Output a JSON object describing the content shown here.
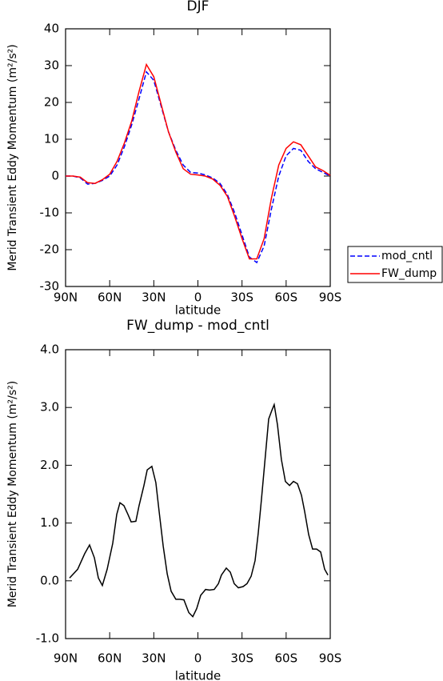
{
  "chart_data": [
    {
      "type": "line",
      "title": "DJF",
      "xlabel": "latitude",
      "ylabel": "Merid Transient Eddy Momentum (m²/s²)",
      "x": [
        90,
        85,
        80,
        75,
        70,
        65,
        60,
        55,
        50,
        45,
        40,
        35,
        30,
        25,
        20,
        15,
        10,
        5,
        0,
        -5,
        -10,
        -15,
        -20,
        -25,
        -30,
        -35,
        -40,
        -45,
        -50,
        -55,
        -60,
        -65,
        -70,
        -75,
        -80,
        -85,
        -90
      ],
      "series": [
        {
          "name": "mod_cntl",
          "color": "#0000ff",
          "dash": "dashed",
          "values": [
            0,
            0,
            -0.5,
            -2.2,
            -2,
            -1.2,
            0,
            3,
            8,
            14,
            21,
            28.3,
            26,
            19,
            12,
            7,
            3,
            1,
            0.8,
            0.3,
            -0.5,
            -2,
            -5,
            -10,
            -16,
            -22,
            -23.5,
            -19,
            -9,
            0,
            5.5,
            7.5,
            7,
            4,
            2,
            1,
            0
          ]
        },
        {
          "name": "FW_dump",
          "color": "#ff0000",
          "dash": "solid",
          "values": [
            0,
            0,
            -0.3,
            -1.8,
            -2,
            -1,
            0.5,
            4,
            9,
            15,
            23,
            30.3,
            27,
            19.5,
            12,
            6.5,
            2,
            0.5,
            0.3,
            0,
            -0.8,
            -2.5,
            -5.5,
            -11,
            -17,
            -22.5,
            -22.5,
            -17,
            -6,
            3,
            7.5,
            9.3,
            8.5,
            5.5,
            2.5,
            1.5,
            0.2
          ]
        }
      ],
      "xlim": [
        90,
        -90
      ],
      "xticks": [
        {
          "value": 90,
          "label": "90N"
        },
        {
          "value": 60,
          "label": "60N"
        },
        {
          "value": 30,
          "label": "30N"
        },
        0,
        {
          "value": -30,
          "label": "30S"
        },
        {
          "value": -60,
          "label": "60S"
        },
        {
          "value": -90,
          "label": "90S"
        }
      ],
      "ylim": [
        -30,
        40
      ],
      "yticks": [
        -30,
        -20,
        -10,
        0,
        10,
        20,
        30,
        40
      ],
      "legend": "right"
    },
    {
      "type": "line",
      "title": "FW_dump - mod_cntl",
      "xlabel": "latitude",
      "ylabel": "Merid Transient Eddy Momentum (m²/s²)",
      "x": [
        87.3,
        81.8,
        77.0,
        73.7,
        70.4,
        67.7,
        65.0,
        61.7,
        57.9,
        55.2,
        53.0,
        50.3,
        47.6,
        45.4,
        42.2,
        40.0,
        36.7,
        34.5,
        31.3,
        28.6,
        26.4,
        23.6,
        20.9,
        18.2,
        15.0,
        12.2,
        9.5,
        6.2,
        3.5,
        0.8,
        -1.9,
        -5.2,
        -7.9,
        -11.1,
        -13.9,
        -16.0,
        -19.3,
        -22.0,
        -24.7,
        -27.5,
        -30.7,
        -33.4,
        -36.2,
        -38.9,
        -41.0,
        -43.2,
        -46.0,
        -48.1,
        -50.3,
        -51.9,
        -54.1,
        -56.8,
        -59.5,
        -62.3,
        -65.0,
        -67.7,
        -70.4,
        -72.6,
        -75.3,
        -78.0,
        -80.7,
        -83.5,
        -86.2,
        -88.4
      ],
      "series": [
        {
          "name": "FW_dump - mod_cntl",
          "color": "#000000",
          "dash": "solid",
          "values": [
            0.05,
            0.2,
            0.47,
            0.62,
            0.4,
            0.05,
            -0.08,
            0.2,
            0.65,
            1.15,
            1.35,
            1.3,
            1.15,
            1.02,
            1.03,
            1.3,
            1.65,
            1.92,
            1.98,
            1.7,
            1.2,
            0.6,
            0.12,
            -0.18,
            -0.32,
            -0.32,
            -0.33,
            -0.55,
            -0.62,
            -0.48,
            -0.25,
            -0.15,
            -0.16,
            -0.15,
            -0.05,
            0.1,
            0.22,
            0.15,
            -0.05,
            -0.12,
            -0.1,
            -0.05,
            0.08,
            0.35,
            0.82,
            1.4,
            2.2,
            2.8,
            2.95,
            3.05,
            2.7,
            2.1,
            1.72,
            1.65,
            1.72,
            1.68,
            1.48,
            1.2,
            0.8,
            0.55,
            0.55,
            0.5,
            0.2,
            0.1
          ]
        }
      ],
      "xlim": [
        90,
        -90
      ],
      "xticks": [
        {
          "value": 90,
          "label": "90N"
        },
        {
          "value": 60,
          "label": "60N"
        },
        {
          "value": 30,
          "label": "30N"
        },
        0,
        {
          "value": -30,
          "label": "30S"
        },
        {
          "value": -60,
          "label": "60S"
        },
        {
          "value": -90,
          "label": "90S"
        }
      ],
      "ylim": [
        -1,
        4
      ],
      "yticks": [
        {
          "value": -1,
          "label": "-1.0"
        },
        {
          "value": 0,
          "label": "0.0"
        },
        {
          "value": 1,
          "label": "1.0"
        },
        {
          "value": 2,
          "label": "2.0"
        },
        {
          "value": 3,
          "label": "3.0"
        },
        {
          "value": 4,
          "label": "4.0"
        }
      ]
    }
  ]
}
